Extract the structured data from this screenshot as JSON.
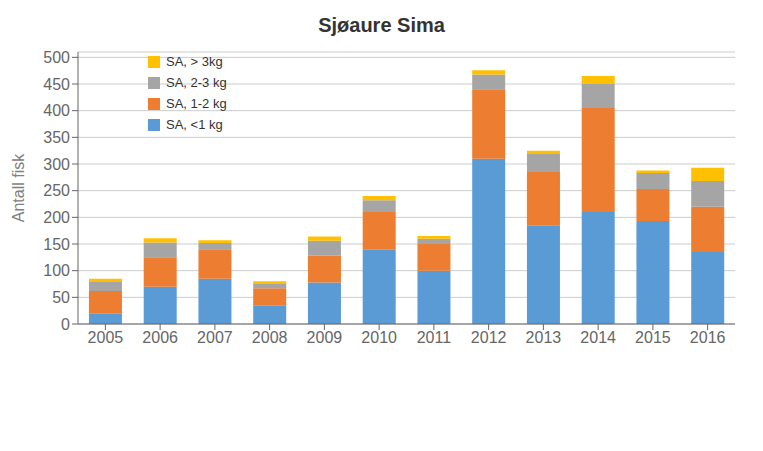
{
  "chart_data": {
    "type": "bar",
    "title": "Sjøaure Sima",
    "ylabel": "Antall fisk",
    "categories": [
      "2005",
      "2006",
      "2007",
      "2008",
      "2009",
      "2010",
      "2011",
      "2012",
      "2013",
      "2014",
      "2015",
      "2016"
    ],
    "series": [
      {
        "name": "SA, <1 kg",
        "color": "#5B9BD5",
        "values": [
          20,
          70,
          85,
          35,
          78,
          140,
          100,
          310,
          185,
          210,
          193,
          135
        ]
      },
      {
        "name": "SA, 1-2 kg",
        "color": "#ED7D31",
        "values": [
          42,
          55,
          55,
          32,
          50,
          70,
          50,
          130,
          100,
          195,
          60,
          85
        ]
      },
      {
        "name": "SA, 2-3 kg",
        "color": "#A5A5A5",
        "values": [
          18,
          28,
          12,
          8,
          28,
          22,
          10,
          28,
          35,
          45,
          30,
          48
        ]
      },
      {
        "name": "SA, > 3kg",
        "color": "#FFC000",
        "values": [
          5,
          8,
          5,
          5,
          8,
          8,
          5,
          8,
          5,
          15,
          5,
          25
        ]
      }
    ],
    "stacked": true,
    "ylim": [
      0,
      510
    ],
    "yticks": [
      0,
      50,
      100,
      150,
      200,
      250,
      300,
      350,
      400,
      450,
      500
    ],
    "grid": true,
    "legend": "upper left"
  }
}
